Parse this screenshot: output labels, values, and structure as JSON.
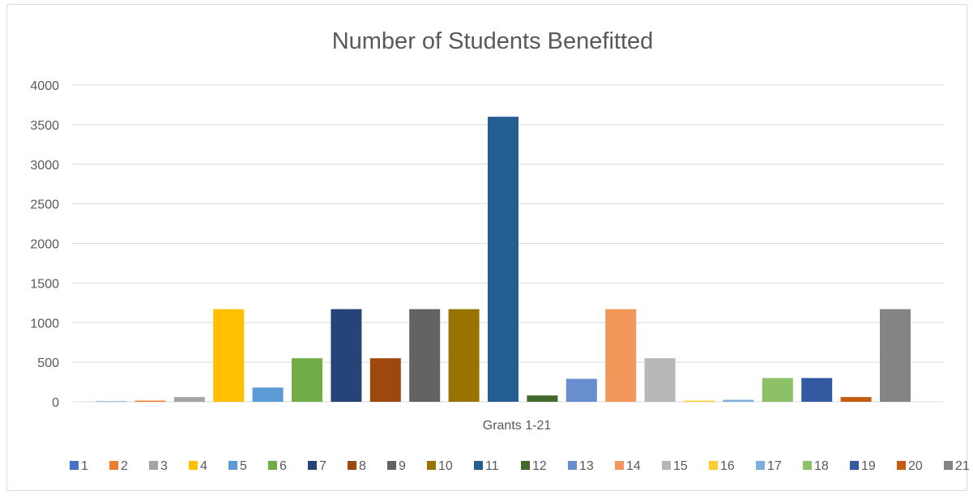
{
  "chart_data": {
    "type": "bar",
    "title": "Number of Students Benefitted",
    "xlabel": "Grants 1-21",
    "ylabel": "",
    "ylim": [
      0,
      4000
    ],
    "yticks": [
      "0",
      "500",
      "1000",
      "1500",
      "2000",
      "2500",
      "3000",
      "3500",
      "4000"
    ],
    "grid": true,
    "legend_position": "bottom",
    "series": [
      {
        "name": "1",
        "value": 5,
        "color": "#4472c4"
      },
      {
        "name": "2",
        "value": 15,
        "color": "#ed7d31"
      },
      {
        "name": "3",
        "value": 60,
        "color": "#a5a5a5"
      },
      {
        "name": "4",
        "value": 1170,
        "color": "#ffc000"
      },
      {
        "name": "5",
        "value": 180,
        "color": "#5b9bd5"
      },
      {
        "name": "6",
        "value": 550,
        "color": "#70ad47"
      },
      {
        "name": "7",
        "value": 1170,
        "color": "#264478"
      },
      {
        "name": "8",
        "value": 550,
        "color": "#9e480e"
      },
      {
        "name": "9",
        "value": 1170,
        "color": "#636363"
      },
      {
        "name": "10",
        "value": 1170,
        "color": "#997300"
      },
      {
        "name": "11",
        "value": 3600,
        "color": "#255e91"
      },
      {
        "name": "12",
        "value": 80,
        "color": "#43682b"
      },
      {
        "name": "13",
        "value": 290,
        "color": "#698ed0"
      },
      {
        "name": "14",
        "value": 1170,
        "color": "#f1975a"
      },
      {
        "name": "15",
        "value": 550,
        "color": "#b7b7b7"
      },
      {
        "name": "16",
        "value": 15,
        "color": "#ffcd33"
      },
      {
        "name": "17",
        "value": 25,
        "color": "#7cafdd"
      },
      {
        "name": "18",
        "value": 300,
        "color": "#8cc168"
      },
      {
        "name": "19",
        "value": 300,
        "color": "#335aa1"
      },
      {
        "name": "20",
        "value": 60,
        "color": "#c55a11"
      },
      {
        "name": "21",
        "value": 1170,
        "color": "#848484"
      }
    ]
  }
}
